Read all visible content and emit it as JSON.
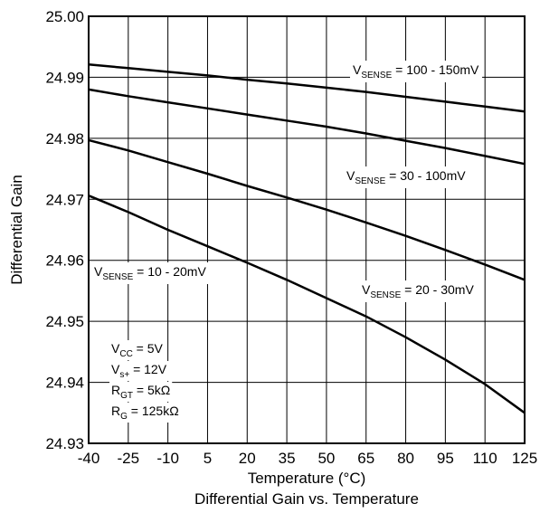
{
  "chart_data": {
    "type": "line",
    "title": "Differential Gain vs. Temperature",
    "xlabel": "Temperature (°C)",
    "ylabel": "Differential Gain",
    "xlim": [
      -40,
      125
    ],
    "ylim": [
      24.93,
      25.0
    ],
    "x_ticks": [
      "-40",
      "-25",
      "-10",
      "5",
      "20",
      "35",
      "50",
      "65",
      "80",
      "95",
      "110",
      "125"
    ],
    "y_ticks": [
      "25.00",
      "24.99",
      "24.98",
      "24.97",
      "24.96",
      "24.95",
      "24.94",
      "24.93"
    ],
    "grid": true,
    "series": [
      {
        "name": "V_SENSE = 100 - 150mV",
        "label_main": "V",
        "label_sub": "SENSE",
        "label_rest": " = 100 - 150mV",
        "x": [
          -40,
          -25,
          -10,
          5,
          20,
          35,
          50,
          65,
          80,
          95,
          110,
          125
        ],
        "y": [
          24.9921,
          24.9915,
          24.9909,
          24.9903,
          24.9896,
          24.989,
          24.9883,
          24.9876,
          24.9868,
          24.986,
          24.9852,
          24.9844
        ]
      },
      {
        "name": "V_SENSE = 30 - 100mV",
        "label_main": "V",
        "label_sub": "SENSE",
        "label_rest": " = 30 - 100mV",
        "x": [
          -40,
          -25,
          -10,
          5,
          20,
          35,
          50,
          65,
          80,
          95,
          110,
          125
        ],
        "y": [
          24.988,
          24.9869,
          24.9859,
          24.9849,
          24.9839,
          24.9829,
          24.9819,
          24.9808,
          24.9796,
          24.9784,
          24.9771,
          24.9758
        ]
      },
      {
        "name": "V_SENSE = 20 - 30mV",
        "label_main": "V",
        "label_sub": "SENSE",
        "label_rest": " = 20 - 30mV",
        "x": [
          -40,
          -25,
          -10,
          5,
          20,
          35,
          50,
          65,
          80,
          95,
          110,
          125
        ],
        "y": [
          24.9797,
          24.978,
          24.9761,
          24.9742,
          24.9722,
          24.9703,
          24.9683,
          24.9662,
          24.964,
          24.9617,
          24.9593,
          24.9568
        ]
      },
      {
        "name": "V_SENSE = 10 - 20mV",
        "label_main": "V",
        "label_sub": "SENSE",
        "label_rest": " = 10 - 20mV",
        "x": [
          -40,
          -25,
          -10,
          5,
          20,
          35,
          50,
          65,
          80,
          95,
          110,
          125
        ],
        "y": [
          24.9706,
          24.9679,
          24.965,
          24.9623,
          24.9596,
          24.9568,
          24.9538,
          24.9508,
          24.9474,
          24.9437,
          24.9397,
          24.935
        ]
      }
    ],
    "conditions": [
      {
        "main": "V",
        "sub": "CC",
        "rest": " = 5V"
      },
      {
        "main": "V",
        "sub": "s+",
        "rest": " = 12V"
      },
      {
        "main": "R",
        "sub": "GT",
        "rest": " = 5kΩ"
      },
      {
        "main": "R",
        "sub": "G",
        "rest": " = 125kΩ"
      }
    ]
  }
}
